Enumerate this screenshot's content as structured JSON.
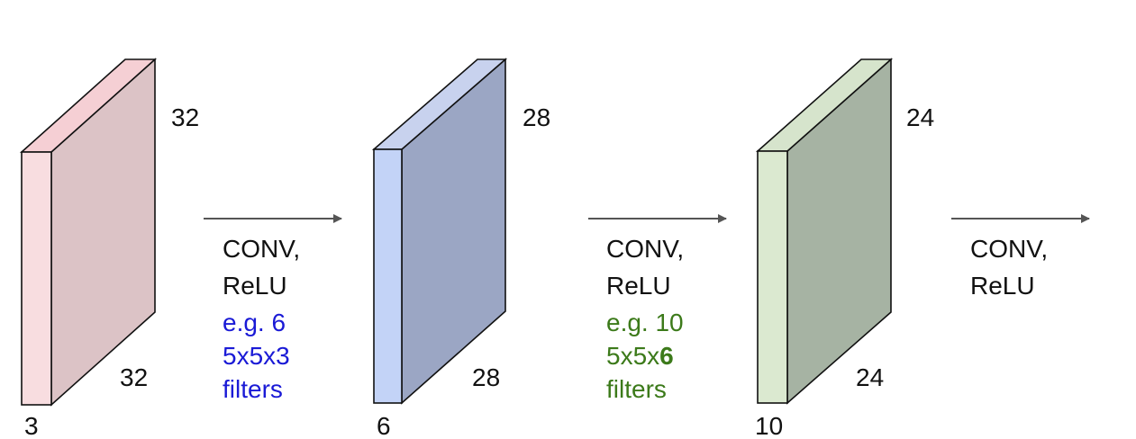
{
  "volumes": [
    {
      "id": "input",
      "width_label": "32",
      "height_label": "32",
      "depth_label": "3",
      "colors": {
        "front": "#f8dde0",
        "top": "#f5cfd4",
        "side": "#dcc3c6",
        "edge": "#111111"
      }
    },
    {
      "id": "conv1",
      "width_label": "28",
      "height_label": "28",
      "depth_label": "6",
      "colors": {
        "front": "#c3d3f7",
        "top": "#c8d2ee",
        "side": "#9ba6c4",
        "edge": "#111111"
      }
    },
    {
      "id": "conv2",
      "width_label": "24",
      "height_label": "24",
      "depth_label": "10",
      "colors": {
        "front": "#dbe9d0",
        "top": "#d6e4cc",
        "side": "#a6b3a3",
        "edge": "#111111"
      }
    }
  ],
  "operations": [
    {
      "id": "op1",
      "line1": "CONV,",
      "line2": "ReLU",
      "example_line1": "e.g. 6",
      "example_line2_prefix": "5x5x3",
      "example_line2_bold": "",
      "example_line3": "filters",
      "example_color": "#1a1ad6"
    },
    {
      "id": "op2",
      "line1": "CONV,",
      "line2": "ReLU",
      "example_line1": "e.g. 10",
      "example_line2_prefix": "5x5x",
      "example_line2_bold": "6",
      "example_line3": "filters",
      "example_color": "#3c7a1a"
    },
    {
      "id": "op3",
      "line1": "CONV,",
      "line2": "ReLU"
    }
  ],
  "colors": {
    "text": "#111111",
    "arrow": "#555555"
  }
}
